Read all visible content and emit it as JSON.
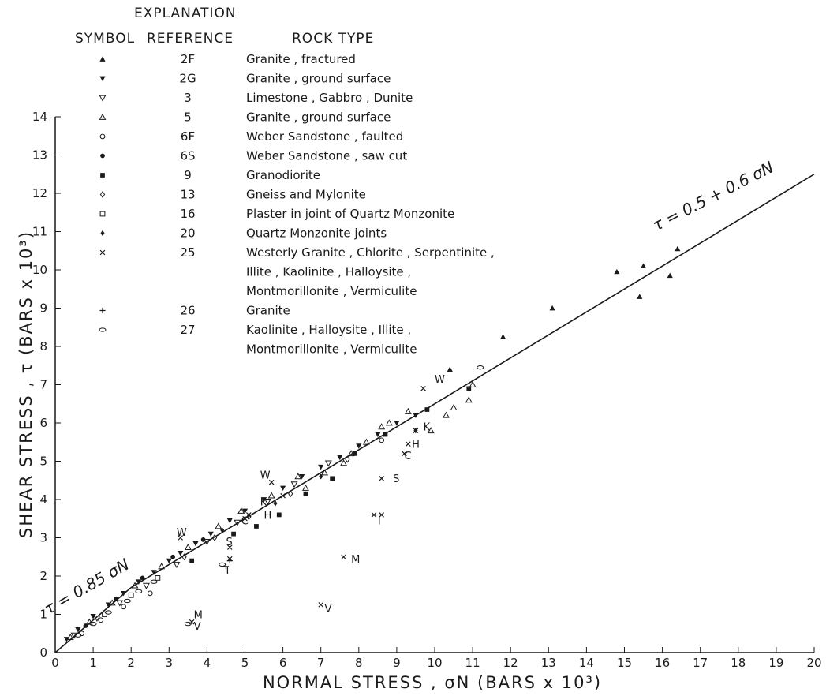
{
  "chart_data": {
    "type": "scatter",
    "xlabel": "NORMAL STRESS , σN (BARS x 10³)",
    "ylabel": "SHEAR STRESS , τ (BARS x 10³)",
    "xlim": [
      0,
      20
    ],
    "ylim": [
      0,
      14
    ],
    "x_ticks": [
      "0",
      "1",
      "2",
      "3",
      "4",
      "5",
      "6",
      "7",
      "8",
      "9",
      "10",
      "11",
      "12",
      "13",
      "14",
      "15",
      "16",
      "17",
      "18",
      "19",
      "20"
    ],
    "y_ticks": [
      "0",
      "1",
      "2",
      "3",
      "4",
      "5",
      "6",
      "7",
      "8",
      "9",
      "10",
      "11",
      "12",
      "13",
      "14"
    ],
    "grid": false,
    "legend": {
      "title": "EXPLANATION",
      "headers": [
        "SYMBOL",
        "REFERENCE",
        "ROCK TYPE"
      ],
      "placement": "top-left",
      "entries": [
        {
          "symbol": "triangle-up-filled",
          "reference": "2F",
          "rock_type": [
            "Granite , fractured"
          ]
        },
        {
          "symbol": "triangle-down-filled",
          "reference": "2G",
          "rock_type": [
            "Granite , ground surface"
          ]
        },
        {
          "symbol": "triangle-down-open",
          "reference": "3",
          "rock_type": [
            "Limestone , Gabbro , Dunite"
          ]
        },
        {
          "symbol": "triangle-up-open",
          "reference": "5",
          "rock_type": [
            "Granite , ground surface"
          ]
        },
        {
          "symbol": "circle-open",
          "reference": "6F",
          "rock_type": [
            "Weber Sandstone , faulted"
          ]
        },
        {
          "symbol": "circle-filled",
          "reference": "6S",
          "rock_type": [
            "Weber Sandstone , saw cut"
          ]
        },
        {
          "symbol": "square-filled",
          "reference": "9",
          "rock_type": [
            "Granodiorite"
          ]
        },
        {
          "symbol": "diamond-open",
          "reference": "13",
          "rock_type": [
            "Gneiss and Mylonite"
          ]
        },
        {
          "symbol": "square-open",
          "reference": "16",
          "rock_type": [
            "Plaster in joint of Quartz Monzonite"
          ]
        },
        {
          "symbol": "diamond-filled",
          "reference": "20",
          "rock_type": [
            "Quartz Monzonite joints"
          ]
        },
        {
          "symbol": "cross",
          "reference": "25",
          "rock_type": [
            "Westerly Granite , Chlorite , Serpentinite ,",
            "Illite , Kaolinite , Halloysite ,",
            "Montmorillonite , Vermiculite"
          ]
        },
        {
          "symbol": "plus",
          "reference": "26",
          "rock_type": [
            "Granite"
          ]
        },
        {
          "symbol": "ellipse-open",
          "reference": "27",
          "rock_type": [
            "Kaolinite , Halloysite , Illite ,",
            "Montmorillonite , Vermiculite"
          ]
        }
      ]
    },
    "fit_lines": [
      {
        "label": "τ = 0.85 σN",
        "x": [
          0,
          2
        ],
        "y": [
          0,
          1.7
        ]
      },
      {
        "label": "τ = 0.5 + 0.6 σN",
        "x": [
          2,
          20
        ],
        "y": [
          1.7,
          12.5
        ]
      }
    ],
    "series": [
      {
        "ref": "2F",
        "symbol": "triangle-up-filled",
        "points": [
          [
            10.4,
            7.4
          ],
          [
            11.8,
            8.25
          ],
          [
            13.1,
            9.0
          ],
          [
            14.8,
            9.95
          ],
          [
            15.4,
            9.3
          ],
          [
            15.5,
            10.1
          ],
          [
            16.2,
            9.85
          ],
          [
            16.4,
            10.55
          ]
        ]
      },
      {
        "ref": "2G",
        "symbol": "triangle-down-filled",
        "points": [
          [
            0.3,
            0.35
          ],
          [
            0.6,
            0.6
          ],
          [
            1.0,
            0.95
          ],
          [
            1.4,
            1.25
          ],
          [
            1.8,
            1.55
          ],
          [
            2.2,
            1.85
          ],
          [
            2.6,
            2.1
          ],
          [
            3.0,
            2.4
          ],
          [
            3.3,
            2.6
          ],
          [
            3.7,
            2.85
          ],
          [
            4.1,
            3.1
          ],
          [
            4.6,
            3.45
          ],
          [
            5.0,
            3.7
          ],
          [
            5.5,
            4.0
          ],
          [
            6.0,
            4.3
          ],
          [
            6.5,
            4.6
          ],
          [
            7.0,
            4.85
          ],
          [
            7.5,
            5.1
          ],
          [
            8.0,
            5.4
          ],
          [
            8.5,
            5.7
          ],
          [
            9.0,
            6.0
          ],
          [
            9.5,
            6.2
          ]
        ]
      },
      {
        "ref": "3",
        "symbol": "triangle-down-open",
        "points": [
          [
            0.5,
            0.45
          ],
          [
            1.1,
            0.9
          ],
          [
            1.7,
            1.3
          ],
          [
            2.4,
            1.75
          ],
          [
            3.2,
            2.3
          ],
          [
            4.0,
            2.9
          ],
          [
            4.8,
            3.4
          ],
          [
            5.6,
            3.95
          ],
          [
            6.3,
            4.4
          ],
          [
            7.2,
            4.95
          ]
        ]
      },
      {
        "ref": "5",
        "symbol": "triangle-up-open",
        "points": [
          [
            0.4,
            0.4
          ],
          [
            0.9,
            0.8
          ],
          [
            1.5,
            1.3
          ],
          [
            2.1,
            1.75
          ],
          [
            2.8,
            2.25
          ],
          [
            3.5,
            2.75
          ],
          [
            4.3,
            3.3
          ],
          [
            4.9,
            3.7
          ],
          [
            5.7,
            4.1
          ],
          [
            6.4,
            4.6
          ],
          [
            7.1,
            4.7
          ],
          [
            7.8,
            5.2
          ],
          [
            8.2,
            5.5
          ],
          [
            8.8,
            6.0
          ],
          [
            9.3,
            6.3
          ],
          [
            9.9,
            5.8
          ],
          [
            10.3,
            6.2
          ],
          [
            10.5,
            6.4
          ],
          [
            10.9,
            6.6
          ],
          [
            11.0,
            7.0
          ],
          [
            6.6,
            4.3
          ],
          [
            7.6,
            4.95
          ],
          [
            8.6,
            5.9
          ]
        ]
      },
      {
        "ref": "6F",
        "symbol": "circle-open",
        "points": [
          [
            0.7,
            0.5
          ],
          [
            1.2,
            0.85
          ],
          [
            1.8,
            1.2
          ],
          [
            2.5,
            1.55
          ],
          [
            8.6,
            5.55
          ]
        ]
      },
      {
        "ref": "6S",
        "symbol": "circle-filled",
        "points": [
          [
            0.8,
            0.7
          ],
          [
            1.6,
            1.4
          ],
          [
            2.3,
            1.95
          ],
          [
            3.1,
            2.5
          ],
          [
            3.9,
            2.95
          ]
        ]
      },
      {
        "ref": "9",
        "symbol": "square-filled",
        "points": [
          [
            3.6,
            2.4
          ],
          [
            4.7,
            3.1
          ],
          [
            5.3,
            3.3
          ],
          [
            5.9,
            3.6
          ],
          [
            6.6,
            4.15
          ],
          [
            7.3,
            4.55
          ],
          [
            7.9,
            5.2
          ],
          [
            8.7,
            5.7
          ],
          [
            9.8,
            6.35
          ],
          [
            10.9,
            6.9
          ]
        ]
      },
      {
        "ref": "13",
        "symbol": "diamond-open",
        "points": [
          [
            3.4,
            2.5
          ],
          [
            4.2,
            3.0
          ],
          [
            5.1,
            3.55
          ],
          [
            6.2,
            4.15
          ],
          [
            7.7,
            5.05
          ]
        ]
      },
      {
        "ref": "16",
        "symbol": "square-open",
        "points": [
          [
            1.3,
            1.0
          ],
          [
            2.0,
            1.5
          ],
          [
            2.7,
            1.95
          ]
        ]
      },
      {
        "ref": "20",
        "symbol": "diamond-filled",
        "points": [
          [
            4.4,
            3.2
          ],
          [
            5.8,
            3.9
          ],
          [
            7.0,
            4.6
          ],
          [
            9.5,
            5.8
          ]
        ]
      },
      {
        "ref": "25",
        "symbol": "cross",
        "points": [
          [
            3.3,
            3.0
          ],
          [
            5.7,
            4.45
          ],
          [
            9.7,
            6.9
          ],
          [
            6.0,
            4.1
          ],
          [
            9.5,
            5.8
          ],
          [
            5.1,
            3.6
          ],
          [
            9.3,
            5.45
          ],
          [
            5.0,
            3.5
          ],
          [
            9.2,
            5.2
          ],
          [
            8.6,
            4.55
          ],
          [
            8.4,
            3.6
          ],
          [
            8.6,
            3.6
          ],
          [
            4.6,
            2.75
          ],
          [
            4.6,
            2.45
          ],
          [
            3.6,
            0.8
          ],
          [
            7.0,
            1.25
          ],
          [
            7.6,
            2.5
          ]
        ]
      },
      {
        "ref": "26",
        "symbol": "plus",
        "points": [
          [
            4.5,
            2.25
          ],
          [
            4.6,
            2.4
          ]
        ]
      },
      {
        "ref": "27",
        "symbol": "ellipse-open",
        "points": [
          [
            3.5,
            0.75
          ],
          [
            4.4,
            2.3
          ],
          [
            0.6,
            0.45
          ],
          [
            1.0,
            0.75
          ],
          [
            1.4,
            1.05
          ],
          [
            1.9,
            1.35
          ],
          [
            2.2,
            1.6
          ],
          [
            2.6,
            1.85
          ],
          [
            11.2,
            7.45
          ]
        ]
      }
    ],
    "point_labels": [
      {
        "text": "W",
        "x": 3.2,
        "y": 3.05
      },
      {
        "text": "W",
        "x": 5.4,
        "y": 4.55
      },
      {
        "text": "W",
        "x": 10.0,
        "y": 7.05
      },
      {
        "text": "K",
        "x": 5.4,
        "y": 3.85
      },
      {
        "text": "K",
        "x": 9.7,
        "y": 5.8
      },
      {
        "text": "H",
        "x": 5.5,
        "y": 3.5
      },
      {
        "text": "H",
        "x": 9.4,
        "y": 5.35
      },
      {
        "text": "C",
        "x": 4.9,
        "y": 3.35
      },
      {
        "text": "C",
        "x": 9.2,
        "y": 5.05
      },
      {
        "text": "S",
        "x": 4.5,
        "y": 2.8
      },
      {
        "text": "S",
        "x": 8.9,
        "y": 4.45
      },
      {
        "text": "I",
        "x": 4.5,
        "y": 2.05
      },
      {
        "text": "I",
        "x": 8.5,
        "y": 3.35
      },
      {
        "text": "M",
        "x": 3.65,
        "y": 0.9
      },
      {
        "text": "M",
        "x": 7.8,
        "y": 2.35
      },
      {
        "text": "V",
        "x": 3.65,
        "y": 0.6
      },
      {
        "text": "V",
        "x": 7.1,
        "y": 1.05
      }
    ],
    "annotations": [
      {
        "text": "τ = 0.85 σN",
        "near": [
          0.9,
          1.6
        ]
      },
      {
        "text": "τ = 0.5 + 0.6 σN",
        "near": [
          17.4,
          11.8
        ]
      }
    ]
  }
}
